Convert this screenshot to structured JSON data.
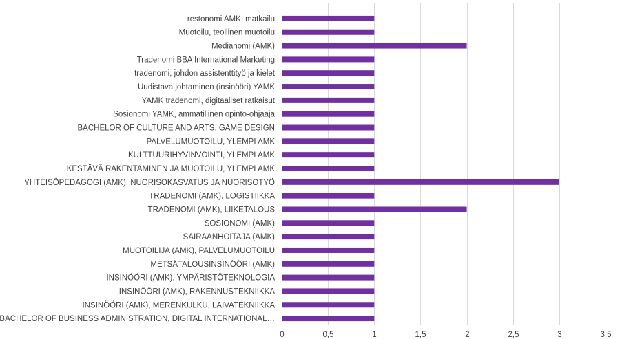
{
  "chart_data": {
    "type": "bar",
    "orientation": "horizontal",
    "categories": [
      "restonomi AMK, matkailu",
      "Muotoilu, teollinen muotoilu",
      "Medianomi (AMK)",
      "Tradenomi BBA International Marketing",
      "tradenomi, johdon assistenttityö ja kielet",
      "Uudistava johtaminen (insinööri) YAMK",
      "YAMK tradenomi, digitaaliset ratkaisut",
      "Sosionomi YAMK, ammatillinen opinto-ohjaaja",
      "BACHELOR OF CULTURE AND ARTS, GAME DESIGN",
      "PALVELUMUOTOILU, YLEMPI AMK",
      "KULTTUURIHYVINVOINTI, YLEMPI AMK",
      "KESTÄVÄ RAKENTAMINEN JA MUOTOILU, YLEMPI AMK",
      "YHTEISÖPEDAGOGI (AMK), NUORISOKASVATUS JA NUORISOTYÖ",
      "TRADENOMI (AMK), LOGISTIIKKA",
      "TRADENOMI (AMK), LIIKETALOUS",
      "SOSIONOMI (AMK)",
      "SAIRAANHOITAJA (AMK)",
      "MUOTOILIJA (AMK), PALVELUMUOTOILU",
      "METSÄTALOUSINSINÖÖRI (AMK)",
      "INSINÖÖRI (AMK), YMPÄRISTÖTEKNOLOGIA",
      "INSINÖÖRI (AMK), RAKENNUSTEKNIIKKA",
      "INSINÖÖRI (AMK), MERENKULKU, LAIVATEKNIIKKA",
      "BACHELOR OF BUSINESS ADMINISTRATION, DIGITAL INTERNATIONAL…"
    ],
    "values": [
      1,
      1,
      2,
      1,
      1,
      1,
      1,
      1,
      1,
      1,
      1,
      1,
      3,
      1,
      2,
      1,
      1,
      1,
      1,
      1,
      1,
      1,
      1
    ],
    "xlim": [
      0,
      3.5
    ],
    "x_ticks": [
      "0",
      "0,5",
      "1",
      "1,5",
      "2",
      "2,5",
      "3",
      "3,5"
    ],
    "grid": "vertical",
    "bar_color": "#7030a0",
    "title": "",
    "xlabel": "",
    "ylabel": ""
  }
}
